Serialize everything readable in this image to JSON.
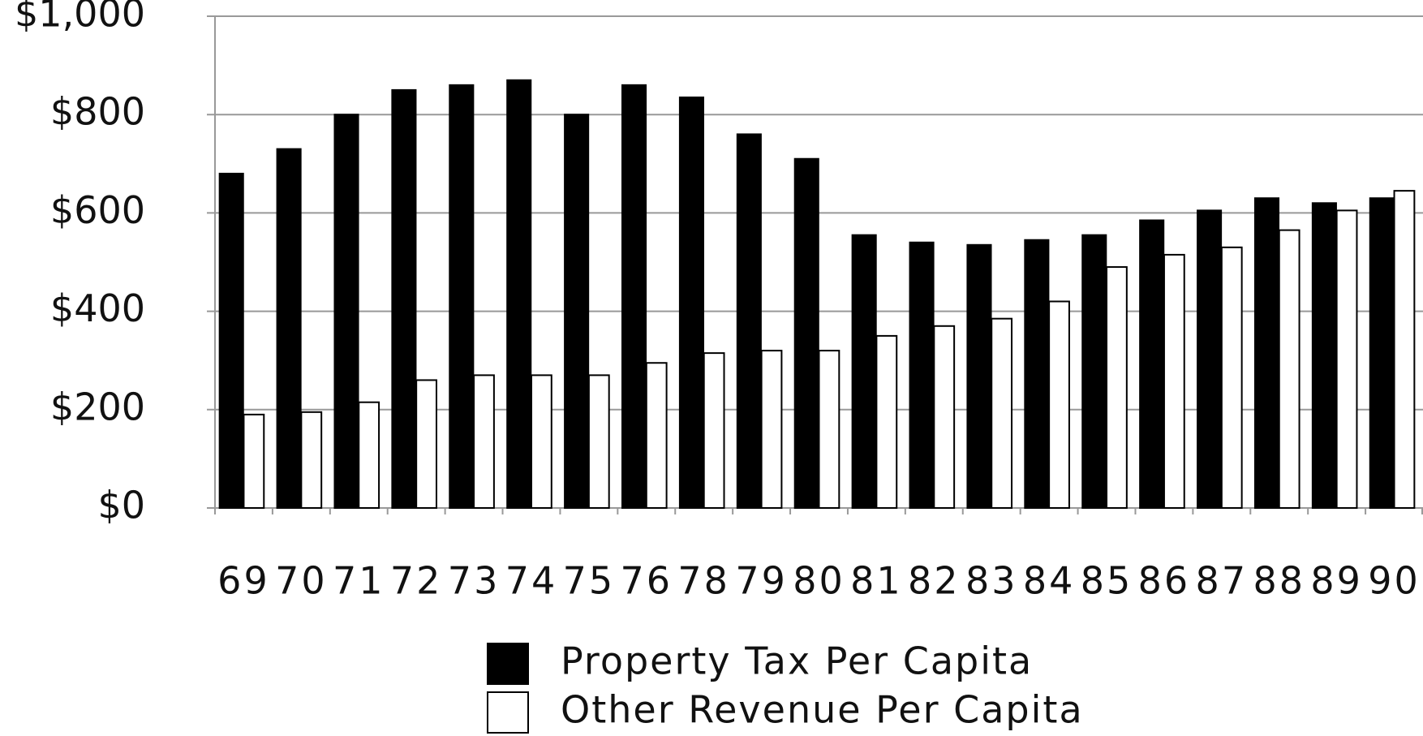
{
  "chart_data": {
    "type": "bar",
    "categories": [
      "69",
      "70",
      "71",
      "72",
      "73",
      "74",
      "75",
      "76",
      "78",
      "79",
      "80",
      "81",
      "82",
      "83",
      "84",
      "85",
      "86",
      "87",
      "88",
      "89",
      "90"
    ],
    "series": [
      {
        "name": "Property Tax Per Capita",
        "color": "#000000",
        "values": [
          680,
          730,
          800,
          850,
          860,
          870,
          800,
          860,
          835,
          760,
          710,
          555,
          540,
          535,
          545,
          555,
          585,
          605,
          630,
          620,
          630
        ]
      },
      {
        "name": "Other Revenue Per Capita",
        "color": "#ffffff",
        "values": [
          190,
          195,
          215,
          260,
          270,
          270,
          270,
          295,
          315,
          320,
          320,
          350,
          370,
          385,
          420,
          490,
          515,
          530,
          565,
          605,
          645
        ]
      }
    ],
    "ylim": [
      0,
      1000
    ],
    "yticks": [
      {
        "value": 0,
        "label": "$0"
      },
      {
        "value": 200,
        "label": "$200"
      },
      {
        "value": 400,
        "label": "$400"
      },
      {
        "value": 600,
        "label": "$600"
      },
      {
        "value": 800,
        "label": "$800"
      },
      {
        "value": 1000,
        "label": "$1,000"
      }
    ],
    "grid": true
  }
}
